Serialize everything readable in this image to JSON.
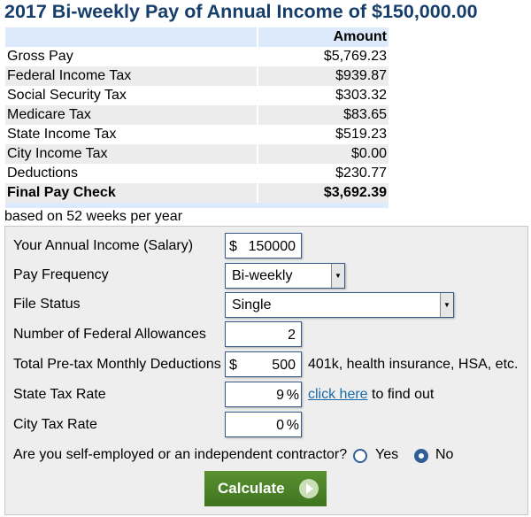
{
  "title": "2017 Bi-weekly Pay of Annual Income of $150,000.00",
  "table": {
    "header_amount": "Amount",
    "rows": [
      {
        "label": "Gross Pay",
        "amount": "$5,769.23"
      },
      {
        "label": "Federal Income Tax",
        "amount": "$939.87"
      },
      {
        "label": "Social Security Tax",
        "amount": "$303.32"
      },
      {
        "label": "Medicare Tax",
        "amount": "$83.65"
      },
      {
        "label": "State Income Tax",
        "amount": "$519.23"
      },
      {
        "label": "City Income Tax",
        "amount": "$0.00"
      },
      {
        "label": "Deductions",
        "amount": "$230.77"
      },
      {
        "label": "Final Pay Check",
        "amount": "$3,692.39"
      }
    ]
  },
  "note": "based on 52 weeks per year",
  "form": {
    "income_label": "Your Annual Income (Salary)",
    "income_currency": "$",
    "income_value": "150000",
    "frequency_label": "Pay Frequency",
    "frequency_value": "Bi-weekly",
    "status_label": "File Status",
    "status_value": "Single",
    "allowances_label": "Number of Federal Allowances",
    "allowances_value": "2",
    "deductions_label": "Total Pre-tax Monthly Deductions",
    "deductions_currency": "$",
    "deductions_value": "500",
    "deductions_hint": "401k, health insurance, HSA, etc.",
    "state_label": "State Tax Rate",
    "state_value": "9",
    "state_unit": "%",
    "state_link": "click here",
    "state_hint": "to find out",
    "city_label": "City Tax Rate",
    "city_value": "0",
    "city_unit": "%",
    "self_employed_label": "Are you self-employed or an independent contractor?",
    "yes_label": "Yes",
    "no_label": "No",
    "self_employed_selected": "No",
    "calculate_label": "Calculate"
  }
}
